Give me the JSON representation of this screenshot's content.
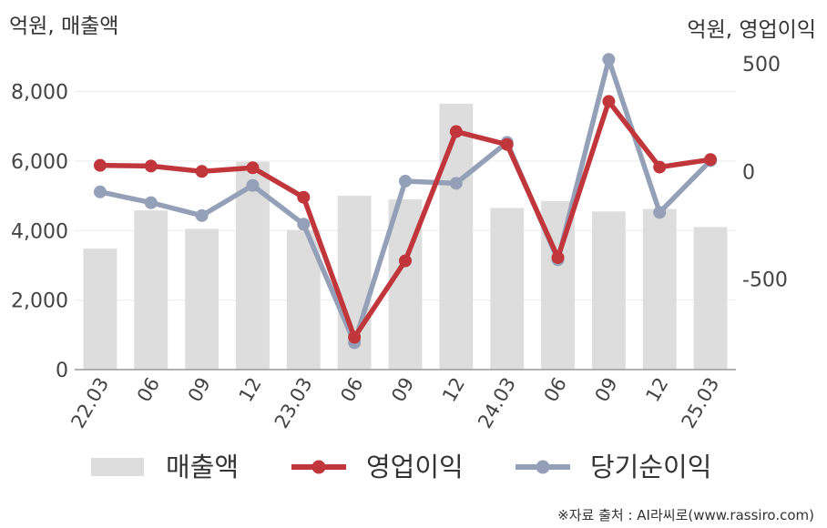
{
  "chart_data": {
    "type": "bar+line",
    "categories": [
      "22.03",
      "06",
      "09",
      "12",
      "23.03",
      "06",
      "09",
      "12",
      "24.03",
      "06",
      "09",
      "12",
      "25.03"
    ],
    "left_axis": {
      "unit_label": "억원, 매출액",
      "ylim": [
        0,
        8800
      ],
      "ticks": [
        0,
        2000,
        4000,
        6000,
        8000
      ],
      "tick_labels": [
        "0",
        "2,000",
        "4,000",
        "6,000",
        "8,000"
      ]
    },
    "right_axis": {
      "unit_label": "억원, 영업이익",
      "ylim": [
        -920,
        500
      ],
      "ticks": [
        -500,
        0,
        500
      ],
      "tick_labels": [
        "-500",
        "0",
        "500"
      ]
    },
    "series": [
      {
        "name": "매출액",
        "kind": "bar",
        "axis": "left",
        "color": "#dddddd",
        "values": [
          3480,
          4580,
          4050,
          5980,
          4020,
          5000,
          4900,
          7650,
          4650,
          4850,
          4550,
          4620,
          4100
        ]
      },
      {
        "name": "영업이익",
        "kind": "line",
        "axis": "right",
        "color": "#c0363a",
        "values": [
          28,
          25,
          0,
          17,
          -120,
          -770,
          -415,
          185,
          125,
          -400,
          325,
          20,
          55
        ]
      },
      {
        "name": "당기순이익",
        "kind": "line",
        "axis": "right",
        "color": "#94a0b8",
        "values": [
          -95,
          -145,
          -205,
          -65,
          -245,
          -795,
          -45,
          -55,
          135,
          -410,
          520,
          -190,
          50
        ]
      }
    ],
    "legend": {
      "placement": "bottom"
    },
    "grid": true
  },
  "source_note": "※자료 출처 : AI라씨로(www.rassiro.com)"
}
